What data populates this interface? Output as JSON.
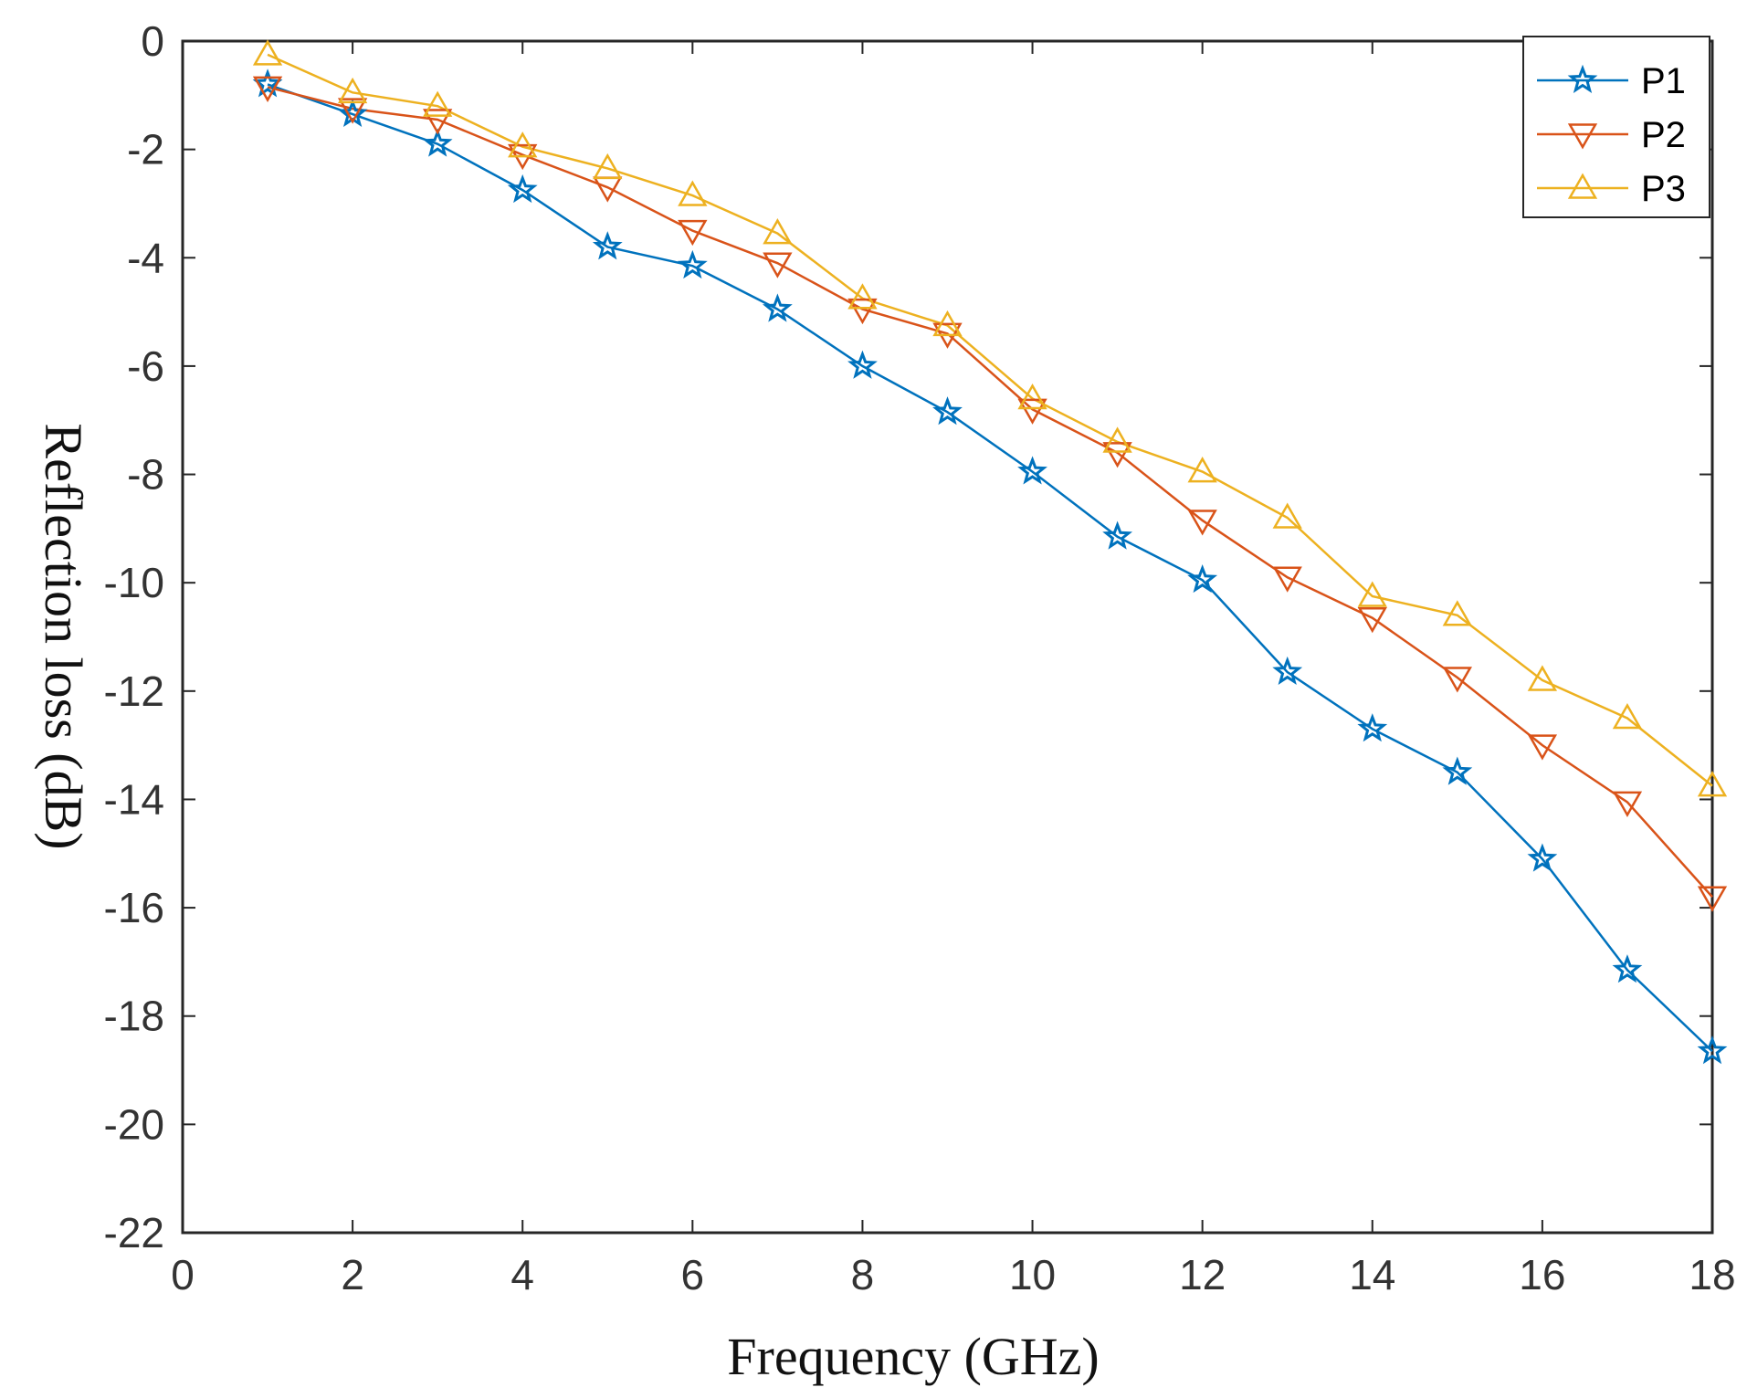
{
  "chart_data": {
    "type": "line",
    "title": "",
    "xlabel": "Frequency (GHz)",
    "ylabel": "Reflection loss (dB)",
    "xlim": [
      0,
      18
    ],
    "ylim": [
      -22,
      0
    ],
    "xticks": [
      0,
      2,
      4,
      6,
      8,
      10,
      12,
      14,
      16,
      18
    ],
    "yticks": [
      0,
      -2,
      -4,
      -6,
      -8,
      -10,
      -12,
      -14,
      -16,
      -18,
      -20,
      -22
    ],
    "xtick_labels": [
      "0",
      "2",
      "4",
      "6",
      "8",
      "10",
      "12",
      "14",
      "16",
      "18"
    ],
    "ytick_labels": [
      "0",
      "-2",
      "-4",
      "-6",
      "-8",
      "-10",
      "-12",
      "-14",
      "-16",
      "-18",
      "-20",
      "-22"
    ],
    "grid": false,
    "legend_position": "top-right",
    "x": [
      1,
      2,
      3,
      4,
      5,
      6,
      7,
      8,
      9,
      10,
      11,
      12,
      13,
      14,
      15,
      16,
      17,
      18
    ],
    "series": [
      {
        "name": "P1",
        "color": "#0072BD",
        "marker": "star",
        "values": [
          -0.8,
          -1.35,
          -1.9,
          -2.75,
          -3.8,
          -4.15,
          -4.95,
          -6.0,
          -6.85,
          -7.95,
          -9.15,
          -9.95,
          -11.65,
          -12.7,
          -13.5,
          -15.1,
          -17.15,
          -18.65
        ]
      },
      {
        "name": "P2",
        "color": "#D95319",
        "marker": "triangle-down",
        "values": [
          -0.85,
          -1.25,
          -1.45,
          -2.1,
          -2.7,
          -3.5,
          -4.1,
          -4.95,
          -5.4,
          -6.8,
          -7.6,
          -8.85,
          -9.9,
          -10.65,
          -11.75,
          -13.0,
          -14.05,
          -15.8
        ]
      },
      {
        "name": "P3",
        "color": "#EDB120",
        "marker": "triangle-up",
        "values": [
          -0.25,
          -0.95,
          -1.2,
          -1.95,
          -2.35,
          -2.85,
          -3.55,
          -4.75,
          -5.25,
          -6.6,
          -7.4,
          -7.95,
          -8.8,
          -10.25,
          -10.6,
          -11.8,
          -12.5,
          -13.75
        ]
      }
    ]
  }
}
